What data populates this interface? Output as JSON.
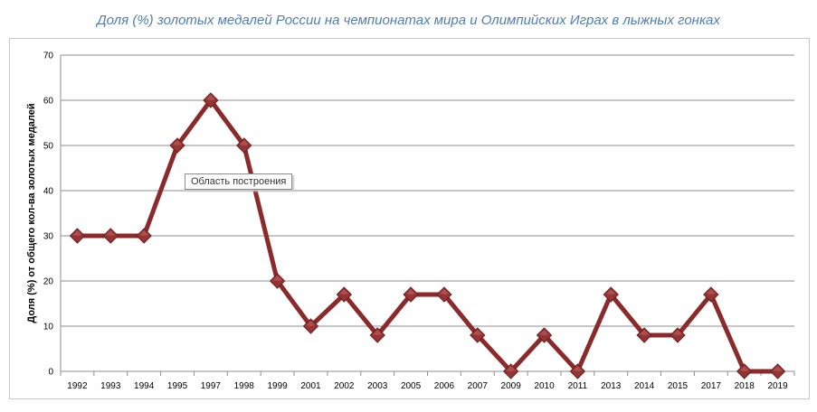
{
  "chart_data": {
    "type": "line",
    "title": "Доля (%) золотых медалей России на чемпионатах мира и Олимпийских Играх в лыжных гонках",
    "xlabel": "",
    "ylabel": "Доля (%) от общего кол-ва золотых медалей",
    "categories": [
      "1992",
      "1993",
      "1994",
      "1995",
      "1997",
      "1998",
      "1999",
      "2001",
      "2002",
      "2003",
      "2005",
      "2006",
      "2007",
      "2009",
      "2010",
      "2011",
      "2013",
      "2014",
      "2015",
      "2017",
      "2018",
      "2019"
    ],
    "series": [
      {
        "values": [
          30,
          30,
          30,
          50,
          60,
          50,
          20,
          10,
          17,
          8,
          17,
          17,
          8,
          0,
          8,
          0,
          17,
          8,
          8,
          17,
          0,
          0
        ]
      }
    ],
    "ylim": [
      0,
      70
    ],
    "yticks": [
      "0",
      "10",
      "20",
      "30",
      "40",
      "50",
      "60",
      "70"
    ],
    "grid": true,
    "legend": "none",
    "line_color": "#8b2a2a",
    "marker": "diamond"
  },
  "tooltip": {
    "text": "Область построения"
  }
}
